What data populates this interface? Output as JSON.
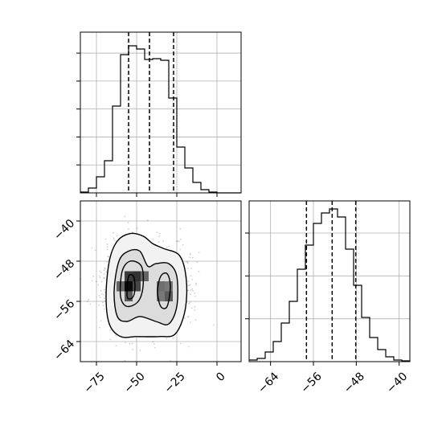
{
  "chart_data": [
    {
      "type": "histogram",
      "panel": "top-left",
      "variable": "x",
      "xlim": [
        -85,
        15
      ],
      "grid": true,
      "quantiles": [
        -55,
        -42,
        -27
      ],
      "bins": [
        -85,
        -80,
        -75,
        -70,
        -65,
        -60,
        -55,
        -50,
        -45,
        -40,
        -35,
        -30,
        -25,
        -20,
        -15,
        -10,
        -5,
        0,
        5,
        10,
        15
      ],
      "counts": [
        1,
        6,
        20,
        40,
        108,
        172,
        183,
        179,
        166,
        167,
        165,
        118,
        57,
        31,
        13,
        4,
        1,
        0,
        0,
        0
      ],
      "ylim": [
        0,
        200
      ],
      "xtick_labels": [],
      "ytick_labels": []
    },
    {
      "type": "scatter",
      "subtype": "2d-density-contour",
      "panel": "bottom-left",
      "xlim": [
        -85,
        15
      ],
      "ylim": [
        -68,
        -36
      ],
      "grid": true,
      "xtick_values": [
        -75,
        -50,
        -25,
        0
      ],
      "xtick_labels": [
        "−75",
        "−50",
        "−25",
        "0"
      ],
      "ytick_values": [
        -40,
        -48,
        -56,
        -64
      ],
      "ytick_labels": [
        "−40",
        "−48",
        "−56",
        "−64"
      ],
      "clusters": [
        {
          "x": -53,
          "y": -53,
          "sx": 9,
          "sy": 4.5,
          "weight": 0.55
        },
        {
          "x": -32,
          "y": -54,
          "sx": 8,
          "sy": 4,
          "weight": 0.45
        }
      ],
      "density_cells": [
        {
          "x": -55,
          "y": -53,
          "shade": 1.0
        },
        {
          "x": -50,
          "y": -51,
          "shade": 0.8
        },
        {
          "x": -55,
          "y": -51,
          "shade": 0.75
        },
        {
          "x": -50,
          "y": -53,
          "shade": 0.7
        },
        {
          "x": -55,
          "y": -55,
          "shade": 0.6
        },
        {
          "x": -60,
          "y": -53,
          "shade": 0.55
        },
        {
          "x": -45,
          "y": -51,
          "shade": 0.55
        },
        {
          "x": -30,
          "y": -55,
          "shade": 0.6
        },
        {
          "x": -35,
          "y": -53,
          "shade": 0.5
        },
        {
          "x": -30,
          "y": -53,
          "shade": 0.45
        },
        {
          "x": -35,
          "y": -55,
          "shade": 0.45
        }
      ],
      "contours": [
        {
          "level": 1,
          "points": [
            [
              -56,
              -54.5
            ],
            [
              -55,
              -51
            ],
            [
              -52,
              -51
            ],
            [
              -51,
              -53
            ],
            [
              -52,
              -55
            ],
            [
              -55,
              -55.5
            ]
          ]
        },
        {
          "level": 2,
          "points": [
            [
              -60,
              -55
            ],
            [
              -59,
              -50
            ],
            [
              -54,
              -48
            ],
            [
              -47,
              -49
            ],
            [
              -46,
              -53
            ],
            [
              -49,
              -56
            ],
            [
              -56,
              -57
            ]
          ]
        },
        {
          "level": 2,
          "points": [
            [
              -37,
              -54
            ],
            [
              -35,
              -51
            ],
            [
              -31,
              -50.5
            ],
            [
              -29,
              -53
            ],
            [
              -31,
              -57
            ],
            [
              -35,
              -57
            ]
          ]
        },
        {
          "level": 3,
          "points": [
            [
              -64,
              -54
            ],
            [
              -61,
              -48
            ],
            [
              -55,
              -46
            ],
            [
              -48,
              -46
            ],
            [
              -43,
              -49
            ],
            [
              -38,
              -48.5
            ],
            [
              -30,
              -48.5
            ],
            [
              -25,
              -51
            ],
            [
              -25,
              -57
            ],
            [
              -30,
              -60.5
            ],
            [
              -38,
              -60
            ],
            [
              -48,
              -59
            ],
            [
              -56,
              -60
            ],
            [
              -62,
              -59
            ]
          ]
        },
        {
          "level": 4,
          "points": [
            [
              -69,
              -55
            ],
            [
              -67,
              -48
            ],
            [
              -62,
              -44
            ],
            [
              -54,
              -42.5
            ],
            [
              -46,
              -43
            ],
            [
              -40,
              -44.5
            ],
            [
              -33,
              -45.5
            ],
            [
              -23,
              -47
            ],
            [
              -19,
              -52
            ],
            [
              -20,
              -58
            ],
            [
              -26,
              -62.5
            ],
            [
              -36,
              -63
            ],
            [
              -50,
              -63
            ],
            [
              -60,
              -63
            ],
            [
              -67,
              -60.5
            ]
          ]
        }
      ],
      "scatter_seed": 7,
      "scatter_count": 1500
    },
    {
      "type": "histogram",
      "panel": "bottom-right",
      "variable": "y",
      "xlim": [
        -68,
        -38
      ],
      "grid": true,
      "quantiles": [
        -57.3,
        -52.5,
        -48.1
      ],
      "bins": [
        -68,
        -66.5,
        -65,
        -63.5,
        -62,
        -60.5,
        -59,
        -57.5,
        -56,
        -54.5,
        -53,
        -51.5,
        -50,
        -48.5,
        -47,
        -45.5,
        -44,
        -42.5,
        -41,
        -39.5,
        -38
      ],
      "counts": [
        2,
        4,
        12,
        25,
        48,
        75,
        115,
        145,
        172,
        185,
        190,
        180,
        140,
        95,
        55,
        30,
        15,
        6,
        2,
        1
      ],
      "ylim": [
        0,
        200
      ],
      "xtick_values": [
        -64,
        -56,
        -48,
        -40
      ],
      "xtick_labels": [
        "−64",
        "−56",
        "−48",
        "−40"
      ],
      "ytick_labels": []
    }
  ]
}
